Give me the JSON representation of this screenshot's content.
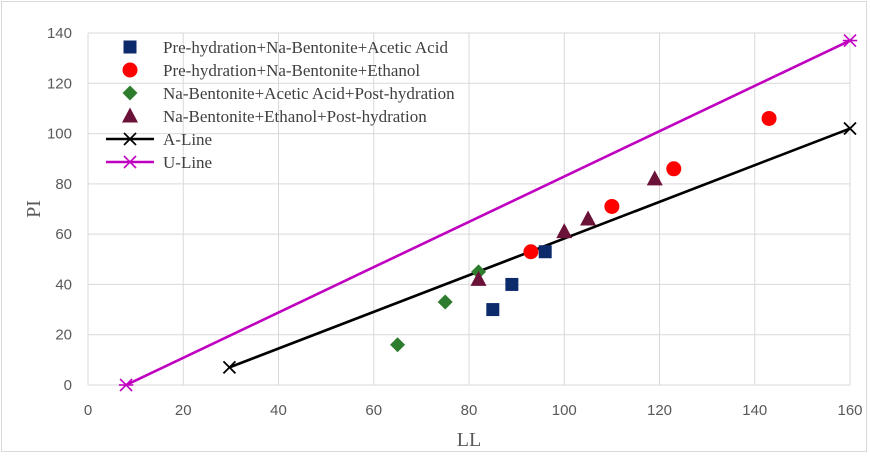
{
  "chart_data": {
    "type": "scatter",
    "title": "",
    "xlabel": "LL",
    "ylabel": "PI",
    "xlim": [
      0,
      160
    ],
    "ylim": [
      0,
      140
    ],
    "x_ticks": [
      0,
      20,
      40,
      60,
      80,
      100,
      120,
      140,
      160
    ],
    "y_ticks": [
      0,
      20,
      40,
      60,
      80,
      100,
      120,
      140
    ],
    "grid": "vertical-and-horizontal",
    "legend_position": "top-left",
    "series": [
      {
        "name": "Pre-hydration+Na-Bentonite+Acetic Acid",
        "marker": "square",
        "color": "#0d2a6b",
        "points": [
          [
            85,
            30
          ],
          [
            89,
            40
          ],
          [
            96,
            53
          ]
        ]
      },
      {
        "name": "Pre-hydration+Na-Bentonite+Ethanol",
        "marker": "circle",
        "color": "#ff0000",
        "points": [
          [
            93,
            53
          ],
          [
            110,
            71
          ],
          [
            123,
            86
          ],
          [
            143,
            106
          ]
        ]
      },
      {
        "name": "Na-Bentonite+Acetic Acid+Post-hydration",
        "marker": "diamond",
        "color": "#2e7d2e",
        "points": [
          [
            65,
            16
          ],
          [
            75,
            33
          ],
          [
            82,
            45
          ]
        ]
      },
      {
        "name": "Na-Bentonite+Ethanol+Post-hydration",
        "marker": "triangle",
        "color": "#6b1238",
        "points": [
          [
            82,
            42
          ],
          [
            100,
            61
          ],
          [
            105,
            66
          ],
          [
            119,
            82
          ]
        ]
      },
      {
        "name": "A-Line",
        "marker": "x",
        "line": true,
        "color": "#000000",
        "points": [
          [
            29.7,
            7
          ],
          [
            160,
            102
          ]
        ]
      },
      {
        "name": "U-Line",
        "marker": "star",
        "line": true,
        "color": "#c000c0",
        "points": [
          [
            8,
            0
          ],
          [
            160,
            137
          ]
        ]
      }
    ]
  }
}
